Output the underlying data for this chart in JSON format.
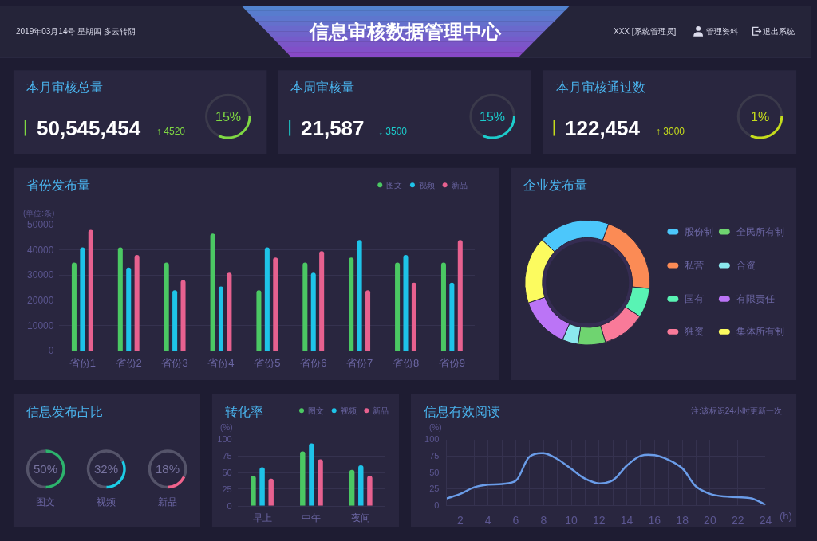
{
  "chart_data": [
    {
      "type": "other",
      "title": "信息审核数据管理中心",
      "annotations": [
        "2019年03月14号 星期四 多云转阴",
        "XXX [系统管理员]",
        "管理资料",
        "退出系统"
      ]
    },
    {
      "type": "other",
      "title": "本月审核总量",
      "annotations": [
        "50,545,454",
        "↑ 4520",
        "15%"
      ]
    },
    {
      "type": "other",
      "title": "本周审核量",
      "annotations": [
        "21,587",
        "↓ 3500",
        "15%"
      ]
    },
    {
      "type": "other",
      "title": "本月审核通过数",
      "annotations": [
        "122,454",
        "↑ 3000",
        "1%"
      ]
    },
    {
      "type": "bar",
      "title": "省份发布量",
      "ylabel": "(单位:条)",
      "categories": [
        "省份1",
        "省份2",
        "省份3",
        "省份4",
        "省份5",
        "省份6",
        "省份7",
        "省份8",
        "省份9"
      ],
      "series": [
        {
          "name": "图文",
          "color": "#4bc863",
          "values": [
            35000,
            41000,
            35000,
            46500,
            24000,
            35000,
            37000,
            35000,
            35000
          ]
        },
        {
          "name": "视频",
          "color": "#1ec3e8",
          "values": [
            41000,
            33000,
            24000,
            25500,
            41000,
            31000,
            44000,
            38000,
            27000
          ]
        },
        {
          "name": "新品",
          "color": "#e7618f",
          "values": [
            48000,
            38000,
            28000,
            31000,
            37000,
            39500,
            24000,
            27000,
            44000
          ]
        }
      ],
      "ylim": [
        0,
        50000
      ],
      "yticks": [
        0,
        10000,
        20000,
        30000,
        40000,
        50000
      ],
      "grid": "y",
      "legend": "top right"
    },
    {
      "type": "donut",
      "title": "企业发布量",
      "categories": [
        "股份制",
        "私营",
        "国有",
        "独资",
        "全民所有制",
        "合资",
        "有限责任",
        "集体所有制"
      ],
      "values": [
        18.5,
        21,
        7.6,
        11.2,
        7.1,
        4.1,
        13.2,
        17.3
      ],
      "colors": [
        "#4cc7fb",
        "#fb8b55",
        "#59f3b4",
        "#f97a99",
        "#6fd470",
        "#8be8ee",
        "#bb74f6",
        "#fcfb5f"
      ],
      "legend": "right"
    },
    {
      "type": "other",
      "title": "信息发布占比"
    },
    {
      "type": "donut",
      "categories": [
        "图文",
        null
      ],
      "values": [
        50,
        50
      ],
      "colors": [
        "#2db36d",
        "#55546a"
      ],
      "annotations": [
        "50%"
      ]
    },
    {
      "type": "donut",
      "categories": [
        "视频",
        null
      ],
      "values": [
        32,
        68
      ],
      "colors": [
        "#1ccde6",
        "#55546a"
      ],
      "annotations": [
        "32%"
      ]
    },
    {
      "type": "donut",
      "categories": [
        "新品",
        null
      ],
      "values": [
        18,
        82
      ],
      "colors": [
        "#f0638c",
        "#55546a"
      ],
      "annotations": [
        "18%"
      ]
    },
    {
      "type": "bar",
      "title": "转化率",
      "ylabel": "(%)",
      "categories": [
        "早上",
        "中午",
        "夜间"
      ],
      "series": [
        {
          "name": "图文",
          "color": "#4bc863",
          "values": [
            45,
            82,
            54
          ]
        },
        {
          "name": "视频",
          "color": "#1ec3e8",
          "values": [
            58,
            94,
            61
          ]
        },
        {
          "name": "新品",
          "color": "#e7618f",
          "values": [
            41,
            70,
            45
          ]
        }
      ],
      "ylim": [
        0,
        100
      ],
      "yticks": [
        0,
        25,
        50,
        75,
        100
      ],
      "grid": "y",
      "legend": "top right"
    },
    {
      "type": "line",
      "title": "信息有效阅读",
      "xlabel": "(h)",
      "ylabel": "(%)",
      "annotations": [
        "注:该标识24小时更新一次"
      ],
      "x": [
        1,
        2,
        3,
        4,
        5,
        6,
        7,
        8,
        9,
        10,
        11,
        12,
        13,
        14,
        15,
        16,
        17,
        18,
        19,
        20,
        21,
        22,
        23,
        24
      ],
      "series": [
        {
          "color": "#6a9ce8",
          "values": [
            10,
            17,
            27,
            31,
            32,
            37,
            74,
            79,
            70,
            55,
            40,
            33,
            38,
            60,
            75,
            76,
            69,
            56,
            28,
            17,
            13,
            12,
            10,
            0
          ]
        }
      ],
      "xlim": [
        1,
        24
      ],
      "xticks": [
        {
          "value": 1,
          "label": null
        },
        2,
        {
          "value": 3,
          "label": null
        },
        4,
        {
          "value": 5,
          "label": null
        },
        6,
        {
          "value": 7,
          "label": null
        },
        8,
        {
          "value": 9,
          "label": null
        },
        10,
        {
          "value": 11,
          "label": null
        },
        12,
        {
          "value": 13,
          "label": null
        },
        14,
        {
          "value": 15,
          "label": null
        },
        16,
        {
          "value": 17,
          "label": null
        },
        18,
        {
          "value": 19,
          "label": null
        },
        20,
        {
          "value": 21,
          "label": null
        },
        22,
        {
          "value": 23,
          "label": null
        },
        24
      ],
      "ylim": [
        0,
        100
      ],
      "yticks": [
        0,
        25,
        50,
        75,
        100
      ],
      "grid": true
    }
  ]
}
